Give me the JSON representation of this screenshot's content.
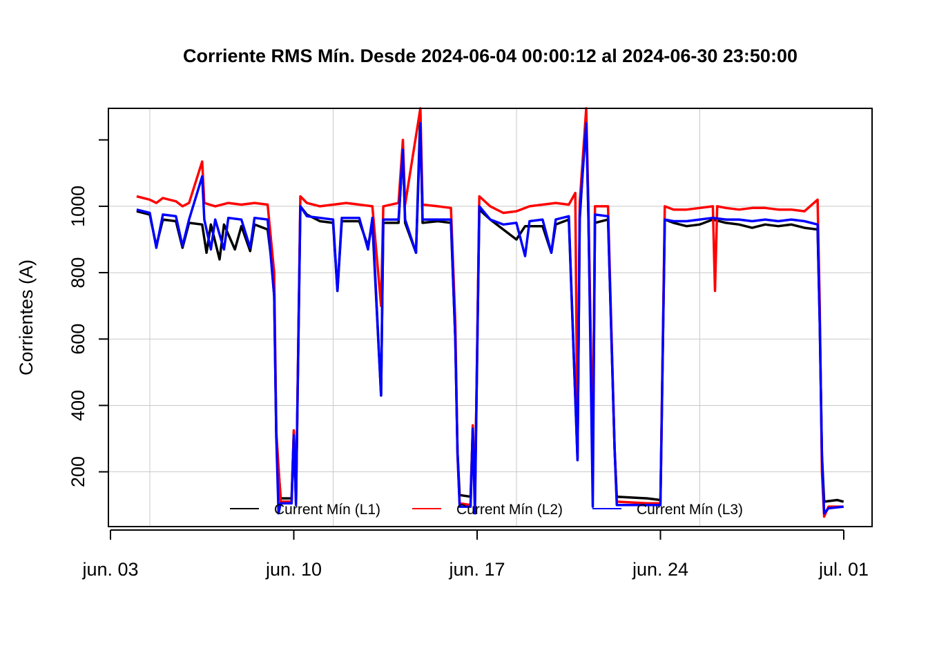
{
  "chart_data": {
    "type": "line",
    "title": "Corriente RMS Mín. Desde  2024-06-04 00:00:12  al  2024-06-30 23:50:00",
    "ylabel": "Corrientes (A)",
    "xlabel": "",
    "ylim": [
      35,
      1295
    ],
    "xlim": [
      "2024-06-03T00:00:00",
      "2024-07-01T00:00:00"
    ],
    "y_ticks": [
      200,
      400,
      600,
      800,
      1000
    ],
    "x_ticks": [
      {
        "date": "2024-06-03",
        "label": "jun. 03"
      },
      {
        "date": "2024-06-10",
        "label": "jun. 10"
      },
      {
        "date": "2024-06-17",
        "label": "jun. 17"
      },
      {
        "date": "2024-06-24",
        "label": "jun. 24"
      },
      {
        "date": "2024-07-01",
        "label": "jul. 01"
      }
    ],
    "grid": true,
    "legend_placement": "bottom",
    "series": [
      {
        "name": "Current Mín (L1)",
        "color": "#000000",
        "points": [
          [
            "2024-06-04 00:00",
            985
          ],
          [
            "2024-06-04 12:00",
            975
          ],
          [
            "2024-06-04 18:00",
            880
          ],
          [
            "2024-06-05 00:00",
            960
          ],
          [
            "2024-06-05 12:00",
            955
          ],
          [
            "2024-06-05 18:00",
            875
          ],
          [
            "2024-06-06 00:00",
            950
          ],
          [
            "2024-06-06 12:00",
            945
          ],
          [
            "2024-06-06 16:00",
            860
          ],
          [
            "2024-06-06 20:00",
            945
          ],
          [
            "2024-06-07 04:00",
            840
          ],
          [
            "2024-06-07 08:00",
            945
          ],
          [
            "2024-06-07 18:00",
            870
          ],
          [
            "2024-06-08 00:00",
            940
          ],
          [
            "2024-06-08 08:00",
            865
          ],
          [
            "2024-06-08 12:00",
            945
          ],
          [
            "2024-06-09 00:00",
            930
          ],
          [
            "2024-06-09 03:00",
            850
          ],
          [
            "2024-06-09 06:00",
            730
          ],
          [
            "2024-06-09 08:00",
            300
          ],
          [
            "2024-06-09 12:00",
            120
          ],
          [
            "2024-06-09 22:00",
            120
          ],
          [
            "2024-06-10 00:00",
            320
          ],
          [
            "2024-06-10 02:00",
            115
          ],
          [
            "2024-06-10 06:00",
            1000
          ],
          [
            "2024-06-10 12:00",
            975
          ],
          [
            "2024-06-11 00:00",
            955
          ],
          [
            "2024-06-11 12:00",
            950
          ],
          [
            "2024-06-11 16:00",
            745
          ],
          [
            "2024-06-11 20:00",
            955
          ],
          [
            "2024-06-12 12:00",
            955
          ],
          [
            "2024-06-12 20:00",
            880
          ],
          [
            "2024-06-13 00:00",
            950
          ],
          [
            "2024-06-13 08:00",
            430
          ],
          [
            "2024-06-13 10:00",
            950
          ],
          [
            "2024-06-14 00:00",
            950
          ],
          [
            "2024-06-14 04:00",
            1175
          ],
          [
            "2024-06-14 06:00",
            950
          ],
          [
            "2024-06-14 16:00",
            860
          ],
          [
            "2024-06-14 20:00",
            1285
          ],
          [
            "2024-06-14 22:00",
            950
          ],
          [
            "2024-06-15 12:00",
            955
          ],
          [
            "2024-06-16 00:00",
            950
          ],
          [
            "2024-06-16 04:00",
            600
          ],
          [
            "2024-06-16 06:00",
            260
          ],
          [
            "2024-06-16 08:00",
            130
          ],
          [
            "2024-06-16 18:00",
            125
          ],
          [
            "2024-06-16 20:00",
            330
          ],
          [
            "2024-06-16 22:00",
            120
          ],
          [
            "2024-06-17 02:00",
            990
          ],
          [
            "2024-06-17 12:00",
            960
          ],
          [
            "2024-06-18 00:00",
            930
          ],
          [
            "2024-06-18 12:00",
            900
          ],
          [
            "2024-06-18 20:00",
            940
          ],
          [
            "2024-06-19 12:00",
            940
          ],
          [
            "2024-06-19 20:00",
            860
          ],
          [
            "2024-06-20 00:00",
            945
          ],
          [
            "2024-06-20 12:00",
            960
          ],
          [
            "2024-06-20 20:00",
            240
          ],
          [
            "2024-06-20 22:00",
            960
          ],
          [
            "2024-06-21 04:00",
            1275
          ],
          [
            "2024-06-21 06:00",
            960
          ],
          [
            "2024-06-21 10:00",
            240
          ],
          [
            "2024-06-21 12:00",
            950
          ],
          [
            "2024-06-22 00:00",
            960
          ],
          [
            "2024-06-22 06:00",
            270
          ],
          [
            "2024-06-22 08:00",
            125
          ],
          [
            "2024-06-23 12:00",
            120
          ],
          [
            "2024-06-24 00:00",
            115
          ],
          [
            "2024-06-24 04:00",
            960
          ],
          [
            "2024-06-24 12:00",
            950
          ],
          [
            "2024-06-25 00:00",
            940
          ],
          [
            "2024-06-25 12:00",
            945
          ],
          [
            "2024-06-26 00:00",
            960
          ],
          [
            "2024-06-26 12:00",
            950
          ],
          [
            "2024-06-27 00:00",
            945
          ],
          [
            "2024-06-27 12:00",
            935
          ],
          [
            "2024-06-28 00:00",
            945
          ],
          [
            "2024-06-28 12:00",
            940
          ],
          [
            "2024-06-29 00:00",
            945
          ],
          [
            "2024-06-29 12:00",
            935
          ],
          [
            "2024-06-30 00:00",
            930
          ],
          [
            "2024-06-30 02:00",
            650
          ],
          [
            "2024-06-30 04:00",
            250
          ],
          [
            "2024-06-30 06:00",
            110
          ],
          [
            "2024-06-30 18:00",
            115
          ],
          [
            "2024-06-30 23:50",
            110
          ]
        ]
      },
      {
        "name": "Current Mín (L2)",
        "color": "#ff0000",
        "points": [
          [
            "2024-06-04 00:00",
            1030
          ],
          [
            "2024-06-04 12:00",
            1020
          ],
          [
            "2024-06-04 18:00",
            1010
          ],
          [
            "2024-06-05 00:00",
            1025
          ],
          [
            "2024-06-05 12:00",
            1015
          ],
          [
            "2024-06-05 18:00",
            1000
          ],
          [
            "2024-06-06 00:00",
            1010
          ],
          [
            "2024-06-06 12:00",
            1135
          ],
          [
            "2024-06-06 14:00",
            1010
          ],
          [
            "2024-06-07 00:00",
            1000
          ],
          [
            "2024-06-07 12:00",
            1010
          ],
          [
            "2024-06-08 00:00",
            1005
          ],
          [
            "2024-06-08 12:00",
            1010
          ],
          [
            "2024-06-09 00:00",
            1005
          ],
          [
            "2024-06-09 06:00",
            800
          ],
          [
            "2024-06-09 08:00",
            320
          ],
          [
            "2024-06-09 12:00",
            110
          ],
          [
            "2024-06-09 22:00",
            110
          ],
          [
            "2024-06-10 00:00",
            325
          ],
          [
            "2024-06-10 02:00",
            105
          ],
          [
            "2024-06-10 06:00",
            1030
          ],
          [
            "2024-06-10 12:00",
            1010
          ],
          [
            "2024-06-11 00:00",
            1000
          ],
          [
            "2024-06-11 12:00",
            1005
          ],
          [
            "2024-06-12 00:00",
            1010
          ],
          [
            "2024-06-12 12:00",
            1005
          ],
          [
            "2024-06-13 00:00",
            1000
          ],
          [
            "2024-06-13 08:00",
            700
          ],
          [
            "2024-06-13 10:00",
            1000
          ],
          [
            "2024-06-14 00:00",
            1010
          ],
          [
            "2024-06-14 04:00",
            1200
          ],
          [
            "2024-06-14 06:00",
            1005
          ],
          [
            "2024-06-14 20:00",
            1295
          ],
          [
            "2024-06-14 22:00",
            1005
          ],
          [
            "2024-06-15 12:00",
            1000
          ],
          [
            "2024-06-16 00:00",
            995
          ],
          [
            "2024-06-16 04:00",
            650
          ],
          [
            "2024-06-16 06:00",
            250
          ],
          [
            "2024-06-16 08:00",
            105
          ],
          [
            "2024-06-16 18:00",
            100
          ],
          [
            "2024-06-16 20:00",
            340
          ],
          [
            "2024-06-16 22:00",
            100
          ],
          [
            "2024-06-17 02:00",
            1030
          ],
          [
            "2024-06-17 12:00",
            1000
          ],
          [
            "2024-06-18 00:00",
            980
          ],
          [
            "2024-06-18 12:00",
            985
          ],
          [
            "2024-06-19 00:00",
            1000
          ],
          [
            "2024-06-19 12:00",
            1005
          ],
          [
            "2024-06-20 00:00",
            1010
          ],
          [
            "2024-06-20 12:00",
            1005
          ],
          [
            "2024-06-20 18:00",
            1040
          ],
          [
            "2024-06-20 20:00",
            240
          ],
          [
            "2024-06-20 22:00",
            1010
          ],
          [
            "2024-06-21 04:00",
            1295
          ],
          [
            "2024-06-21 06:00",
            1000
          ],
          [
            "2024-06-21 10:00",
            250
          ],
          [
            "2024-06-21 12:00",
            1000
          ],
          [
            "2024-06-22 00:00",
            1000
          ],
          [
            "2024-06-22 06:00",
            270
          ],
          [
            "2024-06-22 08:00",
            110
          ],
          [
            "2024-06-23 12:00",
            105
          ],
          [
            "2024-06-24 00:00",
            105
          ],
          [
            "2024-06-24 04:00",
            1000
          ],
          [
            "2024-06-24 12:00",
            990
          ],
          [
            "2024-06-25 00:00",
            990
          ],
          [
            "2024-06-25 12:00",
            995
          ],
          [
            "2024-06-26 00:00",
            1000
          ],
          [
            "2024-06-26 02:00",
            745
          ],
          [
            "2024-06-26 04:00",
            1000
          ],
          [
            "2024-06-26 12:00",
            995
          ],
          [
            "2024-06-27 00:00",
            990
          ],
          [
            "2024-06-27 12:00",
            995
          ],
          [
            "2024-06-28 00:00",
            995
          ],
          [
            "2024-06-28 12:00",
            990
          ],
          [
            "2024-06-29 00:00",
            990
          ],
          [
            "2024-06-29 12:00",
            985
          ],
          [
            "2024-06-30 00:00",
            1020
          ],
          [
            "2024-06-30 02:00",
            700
          ],
          [
            "2024-06-30 04:00",
            200
          ],
          [
            "2024-06-30 06:00",
            65
          ],
          [
            "2024-06-30 10:00",
            95
          ],
          [
            "2024-06-30 23:50",
            95
          ]
        ]
      },
      {
        "name": "Current Mín (L3)",
        "color": "#0000ff",
        "points": [
          [
            "2024-06-04 00:00",
            990
          ],
          [
            "2024-06-04 12:00",
            980
          ],
          [
            "2024-06-04 18:00",
            875
          ],
          [
            "2024-06-05 00:00",
            975
          ],
          [
            "2024-06-05 12:00",
            970
          ],
          [
            "2024-06-05 18:00",
            880
          ],
          [
            "2024-06-06 00:00",
            960
          ],
          [
            "2024-06-06 12:00",
            1090
          ],
          [
            "2024-06-06 14:00",
            960
          ],
          [
            "2024-06-06 20:00",
            870
          ],
          [
            "2024-06-07 00:00",
            960
          ],
          [
            "2024-06-07 08:00",
            870
          ],
          [
            "2024-06-07 12:00",
            965
          ],
          [
            "2024-06-08 00:00",
            960
          ],
          [
            "2024-06-08 08:00",
            875
          ],
          [
            "2024-06-08 12:00",
            965
          ],
          [
            "2024-06-09 00:00",
            960
          ],
          [
            "2024-06-09 06:00",
            730
          ],
          [
            "2024-06-09 08:00",
            300
          ],
          [
            "2024-06-09 10:00",
            75
          ],
          [
            "2024-06-09 12:00",
            105
          ],
          [
            "2024-06-09 22:00",
            105
          ],
          [
            "2024-06-10 00:00",
            310
          ],
          [
            "2024-06-10 02:00",
            100
          ],
          [
            "2024-06-10 06:00",
            1000
          ],
          [
            "2024-06-10 12:00",
            970
          ],
          [
            "2024-06-11 00:00",
            965
          ],
          [
            "2024-06-11 12:00",
            960
          ],
          [
            "2024-06-11 16:00",
            745
          ],
          [
            "2024-06-11 20:00",
            965
          ],
          [
            "2024-06-12 12:00",
            965
          ],
          [
            "2024-06-12 20:00",
            870
          ],
          [
            "2024-06-13 00:00",
            965
          ],
          [
            "2024-06-13 08:00",
            430
          ],
          [
            "2024-06-13 10:00",
            960
          ],
          [
            "2024-06-14 00:00",
            960
          ],
          [
            "2024-06-14 04:00",
            1170
          ],
          [
            "2024-06-14 06:00",
            960
          ],
          [
            "2024-06-14 16:00",
            860
          ],
          [
            "2024-06-14 20:00",
            1250
          ],
          [
            "2024-06-14 22:00",
            960
          ],
          [
            "2024-06-15 12:00",
            960
          ],
          [
            "2024-06-16 00:00",
            960
          ],
          [
            "2024-06-16 04:00",
            600
          ],
          [
            "2024-06-16 06:00",
            260
          ],
          [
            "2024-06-16 08:00",
            95
          ],
          [
            "2024-06-16 18:00",
            95
          ],
          [
            "2024-06-16 20:00",
            330
          ],
          [
            "2024-06-16 22:00",
            75
          ],
          [
            "2024-06-17 02:00",
            1000
          ],
          [
            "2024-06-17 12:00",
            960
          ],
          [
            "2024-06-18 00:00",
            945
          ],
          [
            "2024-06-18 12:00",
            950
          ],
          [
            "2024-06-18 20:00",
            850
          ],
          [
            "2024-06-19 00:00",
            955
          ],
          [
            "2024-06-19 12:00",
            960
          ],
          [
            "2024-06-19 20:00",
            860
          ],
          [
            "2024-06-20 00:00",
            960
          ],
          [
            "2024-06-20 12:00",
            970
          ],
          [
            "2024-06-20 20:00",
            235
          ],
          [
            "2024-06-20 22:00",
            975
          ],
          [
            "2024-06-21 04:00",
            1250
          ],
          [
            "2024-06-21 06:00",
            975
          ],
          [
            "2024-06-21 10:00",
            95
          ],
          [
            "2024-06-21 12:00",
            975
          ],
          [
            "2024-06-22 00:00",
            970
          ],
          [
            "2024-06-22 06:00",
            270
          ],
          [
            "2024-06-22 08:00",
            100
          ],
          [
            "2024-06-23 12:00",
            100
          ],
          [
            "2024-06-24 00:00",
            100
          ],
          [
            "2024-06-24 04:00",
            960
          ],
          [
            "2024-06-24 12:00",
            955
          ],
          [
            "2024-06-25 00:00",
            955
          ],
          [
            "2024-06-25 12:00",
            960
          ],
          [
            "2024-06-26 00:00",
            965
          ],
          [
            "2024-06-26 12:00",
            960
          ],
          [
            "2024-06-27 00:00",
            960
          ],
          [
            "2024-06-27 12:00",
            955
          ],
          [
            "2024-06-28 00:00",
            960
          ],
          [
            "2024-06-28 12:00",
            955
          ],
          [
            "2024-06-29 00:00",
            960
          ],
          [
            "2024-06-29 12:00",
            955
          ],
          [
            "2024-06-30 00:00",
            945
          ],
          [
            "2024-06-30 02:00",
            650
          ],
          [
            "2024-06-30 04:00",
            250
          ],
          [
            "2024-06-30 06:00",
            75
          ],
          [
            "2024-06-30 10:00",
            90
          ],
          [
            "2024-06-30 23:50",
            95
          ]
        ]
      }
    ]
  }
}
